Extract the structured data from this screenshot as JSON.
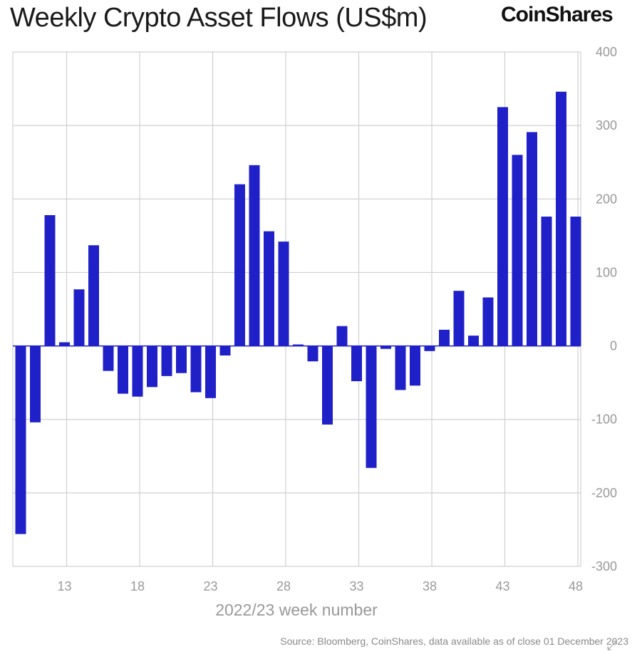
{
  "header": {
    "title": "Weekly Crypto Asset Flows (US$m)",
    "brand": "CoinShares"
  },
  "footer": {
    "source": "Source: Bloomberg, CoinShares, data available as of close 01 December 2023"
  },
  "colors": {
    "bar": "#2020c8",
    "grid": "#d0d0d0",
    "axis_text": "#999999"
  },
  "chart_data": {
    "type": "bar",
    "title": "Weekly Crypto Asset Flows (US$m)",
    "xlabel": "2022/23 week number",
    "ylabel": "",
    "ylim": [
      -300,
      400
    ],
    "y_ticks": [
      400,
      300,
      200,
      100,
      0,
      -100,
      -200,
      -300
    ],
    "y_axis_side": "right",
    "x_ticks": [
      13,
      18,
      23,
      28,
      33,
      38,
      43,
      48
    ],
    "grid": true,
    "categories": [
      10,
      11,
      12,
      13,
      14,
      15,
      16,
      17,
      18,
      19,
      20,
      21,
      22,
      23,
      24,
      25,
      26,
      27,
      28,
      29,
      30,
      31,
      32,
      33,
      34,
      35,
      36,
      37,
      38,
      39,
      40,
      41,
      42,
      43,
      44,
      45,
      46,
      47,
      48
    ],
    "values": [
      -256,
      -104,
      178,
      5,
      77,
      137,
      -34,
      -65,
      -69,
      -56,
      -41,
      -37,
      -63,
      -71,
      -13,
      220,
      246,
      156,
      142,
      2,
      -21,
      -107,
      27,
      -48,
      -166,
      -4,
      -60,
      -54,
      -7,
      22,
      75,
      14,
      66,
      325,
      260,
      291,
      176,
      346,
      176
    ]
  }
}
